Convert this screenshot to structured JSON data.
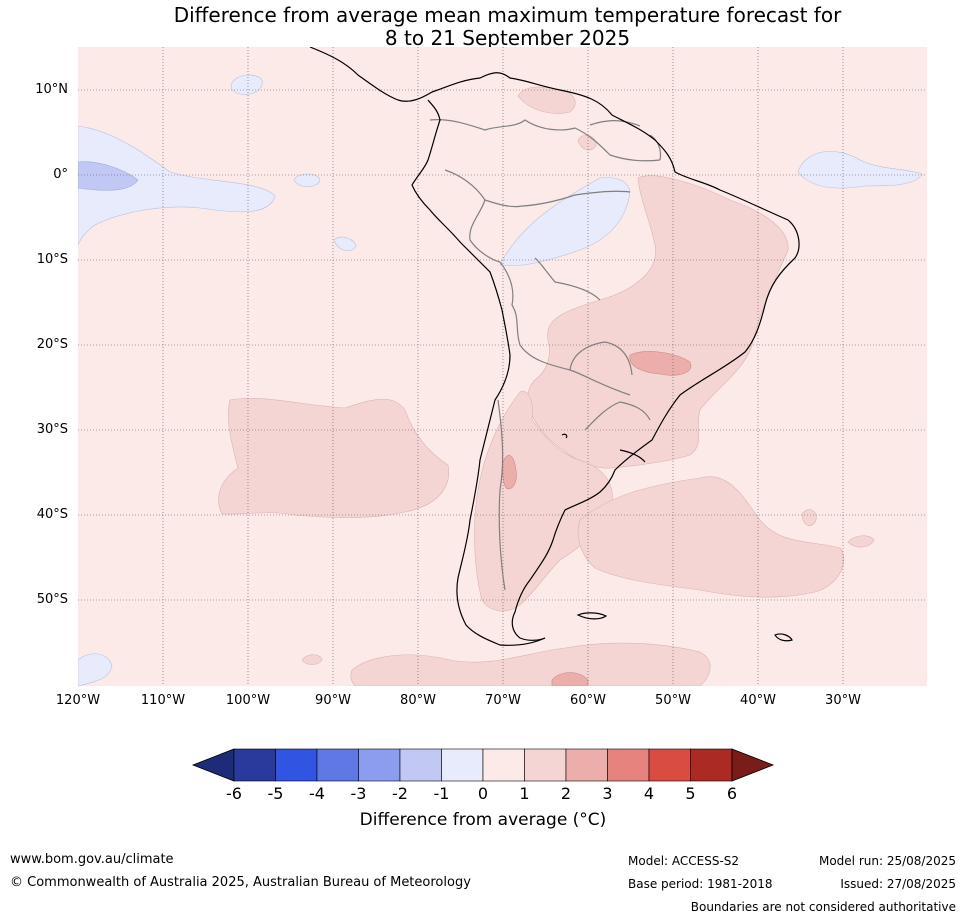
{
  "title": {
    "line1": "Difference from average mean maximum temperature forecast for",
    "line2": "8 to 21 September 2025"
  },
  "map": {
    "lat_labels": [
      "10°N",
      "0°",
      "10°S",
      "20°S",
      "30°S",
      "40°S",
      "50°S"
    ],
    "lon_labels": [
      "120°W",
      "110°W",
      "100°W",
      "90°W",
      "80°W",
      "70°W",
      "60°W",
      "50°W",
      "40°W",
      "30°W"
    ],
    "background_anomaly_color": "#fbeae8"
  },
  "colorbar": {
    "ticks": [
      "-6",
      "-5",
      "-4",
      "-3",
      "-2",
      "-1",
      "0",
      "1",
      "2",
      "3",
      "4",
      "5",
      "6"
    ],
    "colors": [
      "#293a9c",
      "#3154e2",
      "#5f78e4",
      "#8c9df0",
      "#c1c8f3",
      "#e8ebfb",
      "#fbeae8",
      "#f5d5d3",
      "#ecaeab",
      "#e6837e",
      "#d84c42",
      "#ab2a24"
    ],
    "low_extend_color": "#1d2b79",
    "high_extend_color": "#7a1c1a",
    "label": "Difference from average (°C)"
  },
  "footer": {
    "website": "www.bom.gov.au/climate",
    "copyright": "© Commonwealth of Australia 2025, Australian Bureau of Meteorology",
    "model": "Model: ACCESS-S2",
    "base_period": "Base period: 1981-2018",
    "model_run": "Model run: 25/08/2025",
    "issued": "Issued: 27/08/2025",
    "disclaimer": "Boundaries are not considered authoritative"
  }
}
